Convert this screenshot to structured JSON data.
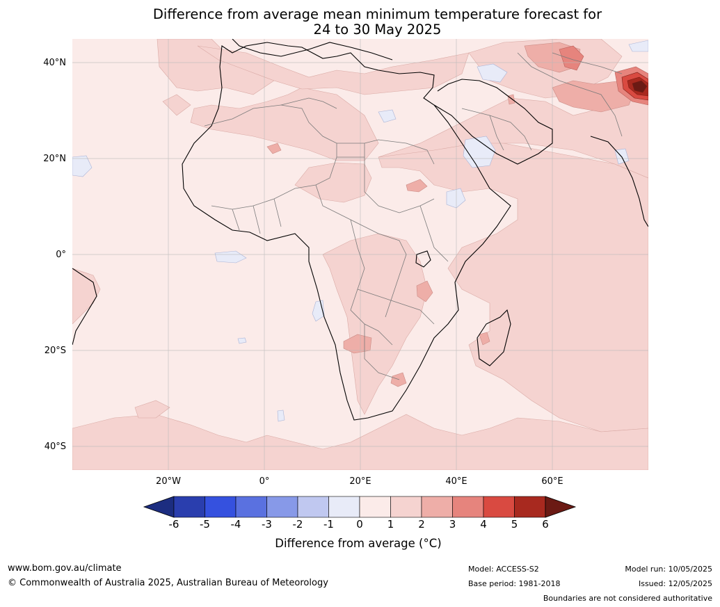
{
  "title": {
    "line1": "Difference from average mean minimum temperature forecast for",
    "line2": "24 to 30 May 2025"
  },
  "map": {
    "lat_labels": [
      "40°N",
      "20°N",
      "0°",
      "20°S",
      "40°S"
    ],
    "lon_labels": [
      "20°W",
      "0°",
      "20°E",
      "40°E",
      "60°E"
    ]
  },
  "colorbar": {
    "ticks": [
      "-6",
      "-5",
      "-4",
      "-3",
      "-2",
      "-1",
      "0",
      "1",
      "2",
      "3",
      "4",
      "5",
      "6"
    ],
    "colors": [
      "#1c2d80",
      "#2a3eae",
      "#3551df",
      "#5a71e0",
      "#8799e8",
      "#c0c8f0",
      "#e8ebf8",
      "#fbebe9",
      "#f5d3d0",
      "#eeaea8",
      "#e6847d",
      "#d94a41",
      "#a8291f",
      "#6b1a14"
    ],
    "title": "Difference from average (°C)"
  },
  "footer": {
    "website": "www.bom.gov.au/climate",
    "copyright": "© Commonwealth of Australia 2025, Australian Bureau of Meteorology",
    "model": "Model: ACCESS-S2",
    "base_period": "Base period: 1981-2018",
    "model_run": "Model run: 10/05/2025",
    "issued": "Issued: 12/05/2025",
    "disclaimer": "Boundaries are not considered authoritative"
  }
}
